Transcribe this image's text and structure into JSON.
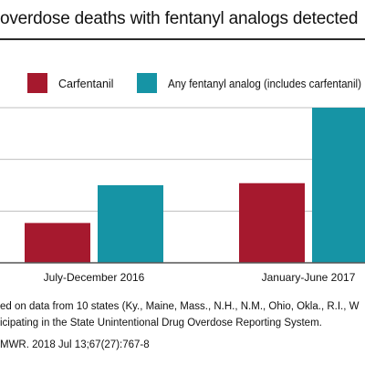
{
  "header": {
    "title": "overdose deaths with fentanyl analogs detected"
  },
  "colors": {
    "carfentanil": "#a6192e",
    "any_analog": "#1694a5",
    "grid": "#bfbfbf",
    "axis": "#555555",
    "text": "#111111"
  },
  "chart_data": {
    "type": "bar",
    "categories": [
      "July-December 2016",
      "January-June 2017"
    ],
    "series": [
      {
        "name": "Carfentanil",
        "values": [
          0.77,
          1.54
        ]
      },
      {
        "name": "Any fentanyl analog (includes carfentanil)",
        "values": [
          1.5,
          3.0
        ]
      }
    ],
    "legend_position": "top",
    "grid": true,
    "ylim": [
      0,
      3.0
    ],
    "y_gridlines": [
      0,
      1,
      2,
      3
    ],
    "xlabel": "",
    "ylabel": ""
  },
  "footer": {
    "note_line1": "ed on data from 10 states (Ky., Maine, Mass., N.H., N.M., Ohio, Okla., R.I., W",
    "note_line2": "icipating in the State Unintentional Drug Overdose Reporting System.",
    "source": "MWR. 2018 Jul 13;67(27):767-8"
  }
}
